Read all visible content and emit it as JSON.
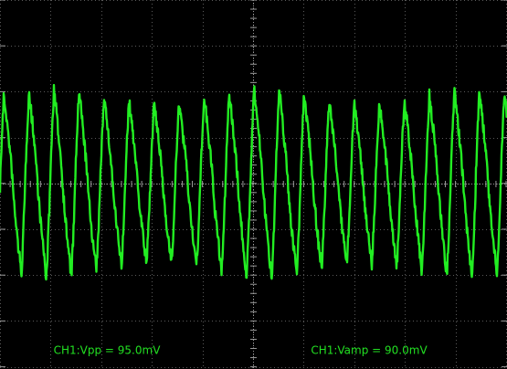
{
  "measurements": [
    "CH1:Vpp = 95.0mV",
    "CH1:Vamp = 90.0mV"
  ]
}
